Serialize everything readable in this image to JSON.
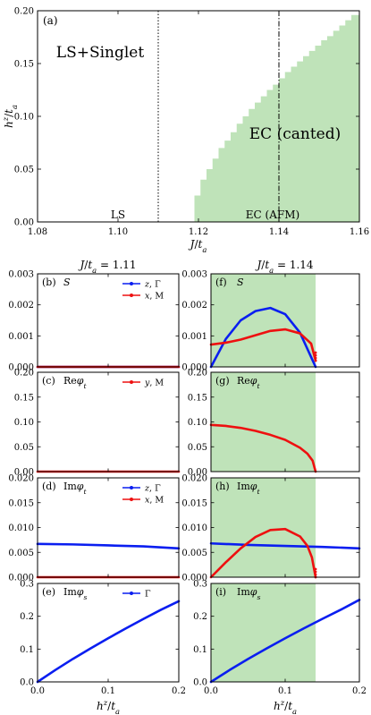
{
  "colors": {
    "blue": "#0a1ef0",
    "red": "#ee1010",
    "shade": "#bfe3b9"
  },
  "chart_data": [
    {
      "id": "a",
      "type": "area",
      "panel_label": "(a)",
      "xlabel": "J/t_a",
      "ylabel": "h^z/t_a",
      "xlim": [
        1.08,
        1.16
      ],
      "ylim": [
        0,
        0.2
      ],
      "xticks": [
        "1.08",
        "1.10",
        "1.12",
        "1.14",
        "1.16"
      ],
      "yticks": [
        "0.00",
        "0.05",
        "0.10",
        "0.15",
        "0.20"
      ],
      "region_labels": [
        "LS+Singlet",
        "EC (canted)",
        "LS",
        "EC (AFM)"
      ],
      "vlines": [
        {
          "x": 1.11,
          "style": "dotted"
        },
        {
          "x": 1.14,
          "style": "dashdot"
        }
      ],
      "boundary": {
        "j": [
          1.119,
          1.1205,
          1.122,
          1.1235,
          1.125,
          1.1265,
          1.128,
          1.1295,
          1.131,
          1.1325,
          1.134,
          1.1355,
          1.137,
          1.1385,
          1.14,
          1.1415,
          1.143,
          1.1445,
          1.146,
          1.1475,
          1.149,
          1.1505,
          1.152,
          1.1535,
          1.155,
          1.1565,
          1.158
        ],
        "h": [
          0.025,
          0.04,
          0.05,
          0.06,
          0.07,
          0.077,
          0.085,
          0.093,
          0.1,
          0.107,
          0.113,
          0.119,
          0.125,
          0.13,
          0.136,
          0.142,
          0.147,
          0.152,
          0.157,
          0.162,
          0.167,
          0.172,
          0.176,
          0.181,
          0.186,
          0.191,
          0.196
        ]
      }
    },
    {
      "id": "b",
      "panel_label": "(b)",
      "quantity": "S",
      "column_title": "J/t_a = 1.11",
      "ylim": [
        0,
        0.003
      ],
      "yticks": [
        "0.000",
        "0.001",
        "0.002",
        "0.003"
      ],
      "legend": [
        {
          "name": "z, Γ",
          "color": "blue"
        },
        {
          "name": "x, M",
          "color": "red"
        }
      ],
      "series": [
        {
          "color": "blue",
          "x": [
            0,
            0.2
          ],
          "y": [
            0,
            0
          ]
        },
        {
          "color": "red",
          "x": [
            0,
            0.2
          ],
          "y": [
            0,
            0
          ]
        }
      ]
    },
    {
      "id": "c",
      "panel_label": "(c)",
      "quantity": "Reφ_t",
      "ylim": [
        0,
        0.2
      ],
      "yticks": [
        "0.00",
        "0.05",
        "0.10",
        "0.15",
        "0.20"
      ],
      "legend": [
        {
          "name": "y, M",
          "color": "red"
        }
      ],
      "series": [
        {
          "color": "red",
          "x": [
            0,
            0.2
          ],
          "y": [
            0,
            0
          ]
        }
      ]
    },
    {
      "id": "d",
      "panel_label": "(d)",
      "quantity": "Imφ_t",
      "ylim": [
        0,
        0.02
      ],
      "yticks": [
        "0.000",
        "0.005",
        "0.010",
        "0.015",
        "0.020"
      ],
      "legend": [
        {
          "name": "z, Γ",
          "color": "blue"
        },
        {
          "name": "x, M",
          "color": "red"
        }
      ],
      "series": [
        {
          "color": "blue",
          "x": [
            0,
            0.05,
            0.1,
            0.15,
            0.2
          ],
          "y": [
            0.0067,
            0.0066,
            0.0064,
            0.0062,
            0.0058
          ]
        },
        {
          "color": "red",
          "x": [
            0,
            0.2
          ],
          "y": [
            0,
            0
          ]
        }
      ]
    },
    {
      "id": "e",
      "panel_label": "(e)",
      "quantity": "Imφ_s",
      "ylim": [
        0,
        0.3
      ],
      "yticks": [
        "0.0",
        "0.1",
        "0.2",
        "0.3"
      ],
      "xticks": [
        "0.0",
        "0.1",
        "0.2"
      ],
      "xlabel": "h^z/t_a",
      "legend": [
        {
          "name": "Γ",
          "color": "blue"
        }
      ],
      "series": [
        {
          "color": "blue",
          "x": [
            0,
            0.025,
            0.05,
            0.075,
            0.1,
            0.125,
            0.15,
            0.175,
            0.2
          ],
          "y": [
            0,
            0.036,
            0.07,
            0.102,
            0.133,
            0.163,
            0.192,
            0.22,
            0.246
          ]
        }
      ]
    },
    {
      "id": "f",
      "panel_label": "(f)",
      "quantity": "S",
      "column_title": "J/t_a = 1.14",
      "ylim": [
        0,
        0.003
      ],
      "shade_xmax": 0.141,
      "series": [
        {
          "color": "blue",
          "x": [
            0,
            0.02,
            0.04,
            0.06,
            0.08,
            0.1,
            0.12,
            0.141
          ],
          "y": [
            0,
            0.0009,
            0.0015,
            0.0018,
            0.0019,
            0.0017,
            0.0011,
            0
          ]
        },
        {
          "color": "red",
          "x": [
            0,
            0.02,
            0.04,
            0.06,
            0.08,
            0.1,
            0.12,
            0.135,
            0.141
          ],
          "y": [
            0.00072,
            0.00078,
            0.00088,
            0.00102,
            0.00116,
            0.00121,
            0.00108,
            0.00075,
            0.0002
          ]
        }
      ]
    },
    {
      "id": "g",
      "panel_label": "(g)",
      "quantity": "Reφ_t",
      "ylim": [
        0,
        0.2
      ],
      "shade_xmax": 0.141,
      "series": [
        {
          "color": "red",
          "x": [
            0,
            0.02,
            0.04,
            0.06,
            0.08,
            0.1,
            0.12,
            0.13,
            0.137,
            0.141
          ],
          "y": [
            0.094,
            0.092,
            0.088,
            0.082,
            0.074,
            0.064,
            0.048,
            0.036,
            0.022,
            0
          ]
        }
      ]
    },
    {
      "id": "h",
      "panel_label": "(h)",
      "quantity": "Imφ_t",
      "ylim": [
        0,
        0.02
      ],
      "shade_xmax": 0.141,
      "series": [
        {
          "color": "blue",
          "x": [
            0,
            0.05,
            0.1,
            0.15,
            0.2
          ],
          "y": [
            0.0068,
            0.0065,
            0.0063,
            0.0061,
            0.0058
          ]
        },
        {
          "color": "red",
          "x": [
            0,
            0.02,
            0.04,
            0.06,
            0.08,
            0.1,
            0.12,
            0.13,
            0.136,
            0.141
          ],
          "y": [
            0,
            0.003,
            0.0058,
            0.0081,
            0.0095,
            0.0097,
            0.0082,
            0.0063,
            0.004,
            0
          ]
        }
      ]
    },
    {
      "id": "i",
      "panel_label": "(i)",
      "quantity": "Imφ_s",
      "ylim": [
        0,
        0.3
      ],
      "shade_xmax": 0.141,
      "xticks": [
        "0.0",
        "0.1",
        "0.2"
      ],
      "xlabel": "h^z/t_a",
      "series": [
        {
          "color": "blue",
          "x": [
            0,
            0.025,
            0.05,
            0.075,
            0.1,
            0.125,
            0.15,
            0.175,
            0.2
          ],
          "y": [
            0,
            0.036,
            0.07,
            0.102,
            0.133,
            0.163,
            0.192,
            0.22,
            0.25
          ]
        }
      ]
    }
  ]
}
